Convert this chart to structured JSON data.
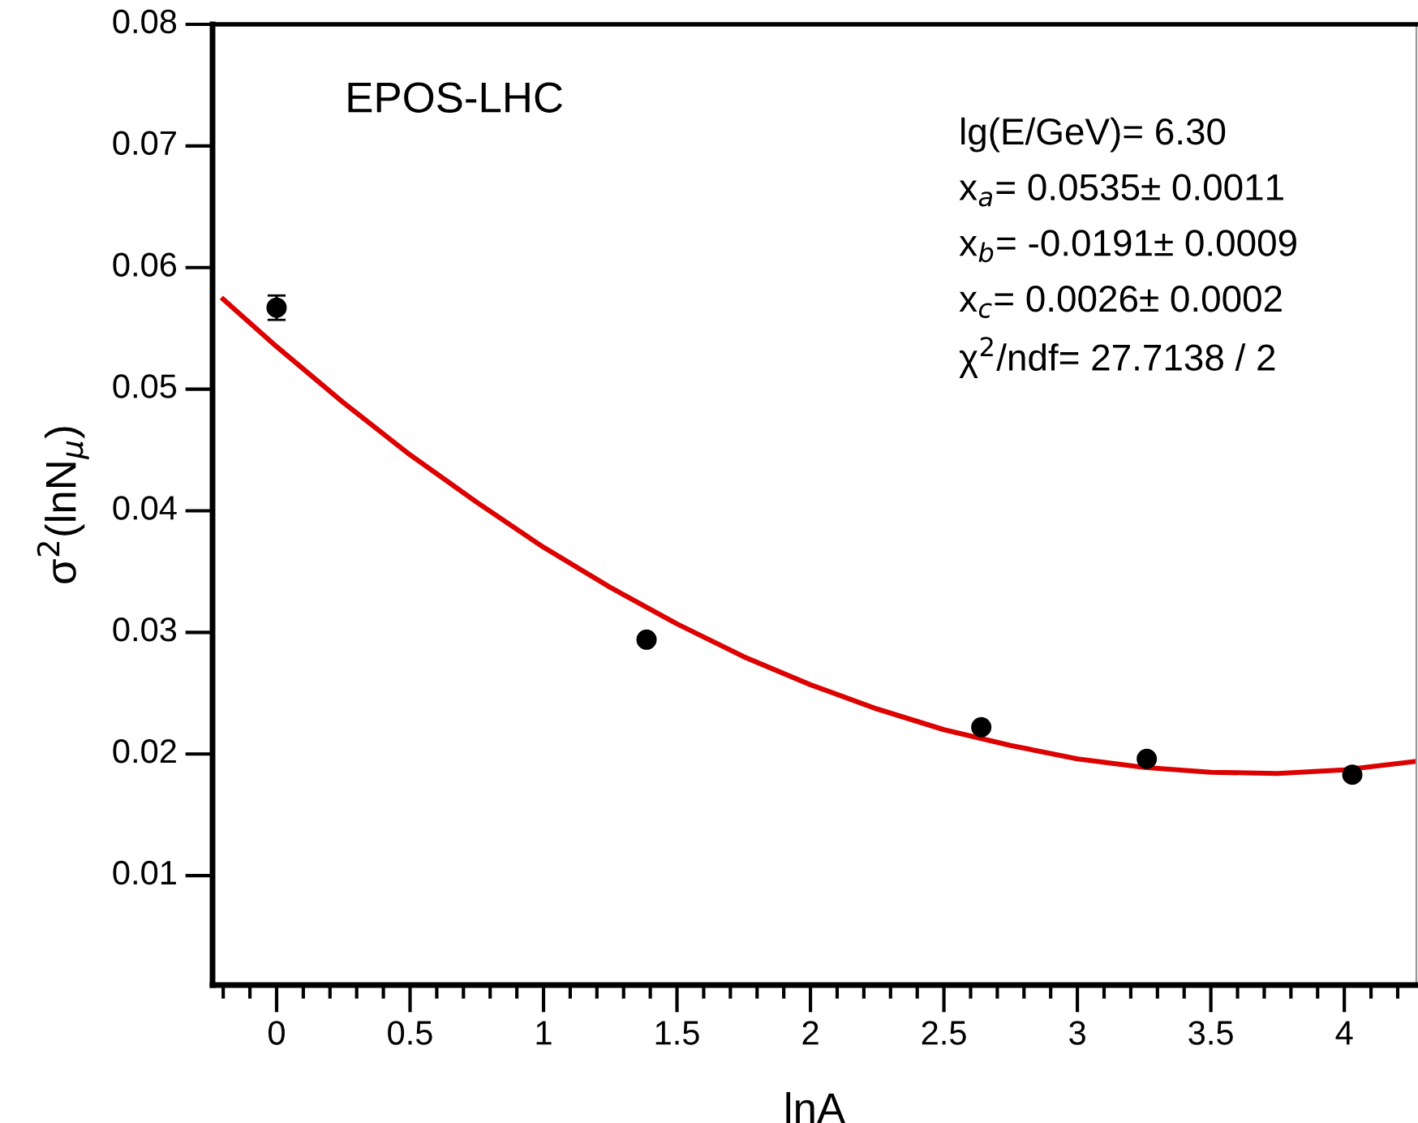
{
  "chart_data": {
    "type": "scatter",
    "xlabel": "lnA",
    "ylabel": "σ$^{2}$(lnN$_{μ}$)",
    "xlim": [
      -0.24,
      4.27
    ],
    "ylim": [
      0.001,
      0.08
    ],
    "xticks": [
      {
        "value": -0.2,
        "label": null
      },
      {
        "value": -0.1,
        "label": null
      },
      0,
      {
        "value": 0.1,
        "label": null
      },
      {
        "value": 0.2,
        "label": null
      },
      {
        "value": 0.3,
        "label": null
      },
      {
        "value": 0.4,
        "label": null
      },
      0.5,
      {
        "value": 0.6,
        "label": null
      },
      {
        "value": 0.7,
        "label": null
      },
      {
        "value": 0.8,
        "label": null
      },
      {
        "value": 0.9,
        "label": null
      },
      1,
      {
        "value": 1.1,
        "label": null
      },
      {
        "value": 1.2,
        "label": null
      },
      {
        "value": 1.3,
        "label": null
      },
      {
        "value": 1.4,
        "label": null
      },
      1.5,
      {
        "value": 1.6,
        "label": null
      },
      {
        "value": 1.7,
        "label": null
      },
      {
        "value": 1.8,
        "label": null
      },
      {
        "value": 1.9,
        "label": null
      },
      2,
      {
        "value": 2.1,
        "label": null
      },
      {
        "value": 2.2,
        "label": null
      },
      {
        "value": 2.3,
        "label": null
      },
      {
        "value": 2.4,
        "label": null
      },
      2.5,
      {
        "value": 2.6,
        "label": null
      },
      {
        "value": 2.7,
        "label": null
      },
      {
        "value": 2.8,
        "label": null
      },
      {
        "value": 2.9,
        "label": null
      },
      3,
      {
        "value": 3.1,
        "label": null
      },
      {
        "value": 3.2,
        "label": null
      },
      {
        "value": 3.3,
        "label": null
      },
      {
        "value": 3.4,
        "label": null
      },
      3.5,
      {
        "value": 3.6,
        "label": null
      },
      {
        "value": 3.7,
        "label": null
      },
      {
        "value": 3.8,
        "label": null
      },
      {
        "value": 3.9,
        "label": null
      },
      4,
      {
        "value": 4.1,
        "label": null
      },
      {
        "value": 4.2,
        "label": null
      }
    ],
    "yticks": [
      0.01,
      0.02,
      0.03,
      0.04,
      0.05,
      0.06,
      0.07,
      0.08
    ],
    "marker": "circle",
    "grid": false,
    "series": [
      {
        "color": "#000000",
        "x": [
          0,
          1.386,
          2.64,
          3.26,
          4.03
        ],
        "values": [
          0.0567,
          0.0294,
          0.0222,
          0.0196,
          0.0183
        ],
        "errors": [
          0.001,
          null,
          null,
          null,
          null
        ]
      },
      {
        "type": "line",
        "color": "#dd0000",
        "marker": "none",
        "x": [
          -0.2,
          0,
          0.25,
          0.5,
          0.75,
          1,
          1.25,
          1.5,
          1.75,
          2,
          2.25,
          2.5,
          2.75,
          3,
          3.25,
          3.5,
          3.75,
          4,
          4.27
        ],
        "values": [
          0.0574,
          0.0535,
          0.0489,
          0.0446,
          0.0407,
          0.037,
          0.0337,
          0.0307,
          0.028,
          0.0257,
          0.0237,
          0.022,
          0.0207,
          0.0196,
          0.0189,
          0.0185,
          0.0184,
          0.0187,
          0.0194
        ]
      }
    ],
    "annotations": [
      "EPOS-LHC",
      "lg(E/GeV)= 6.30",
      "x$_{a}$= 0.0535± 0.0011",
      "x$_{b}$= -0.0191± 0.0009",
      "x$_{c}$= 0.0026± 0.0002",
      "χ$^{2}$/ndf= 27.7138 / 2"
    ]
  }
}
